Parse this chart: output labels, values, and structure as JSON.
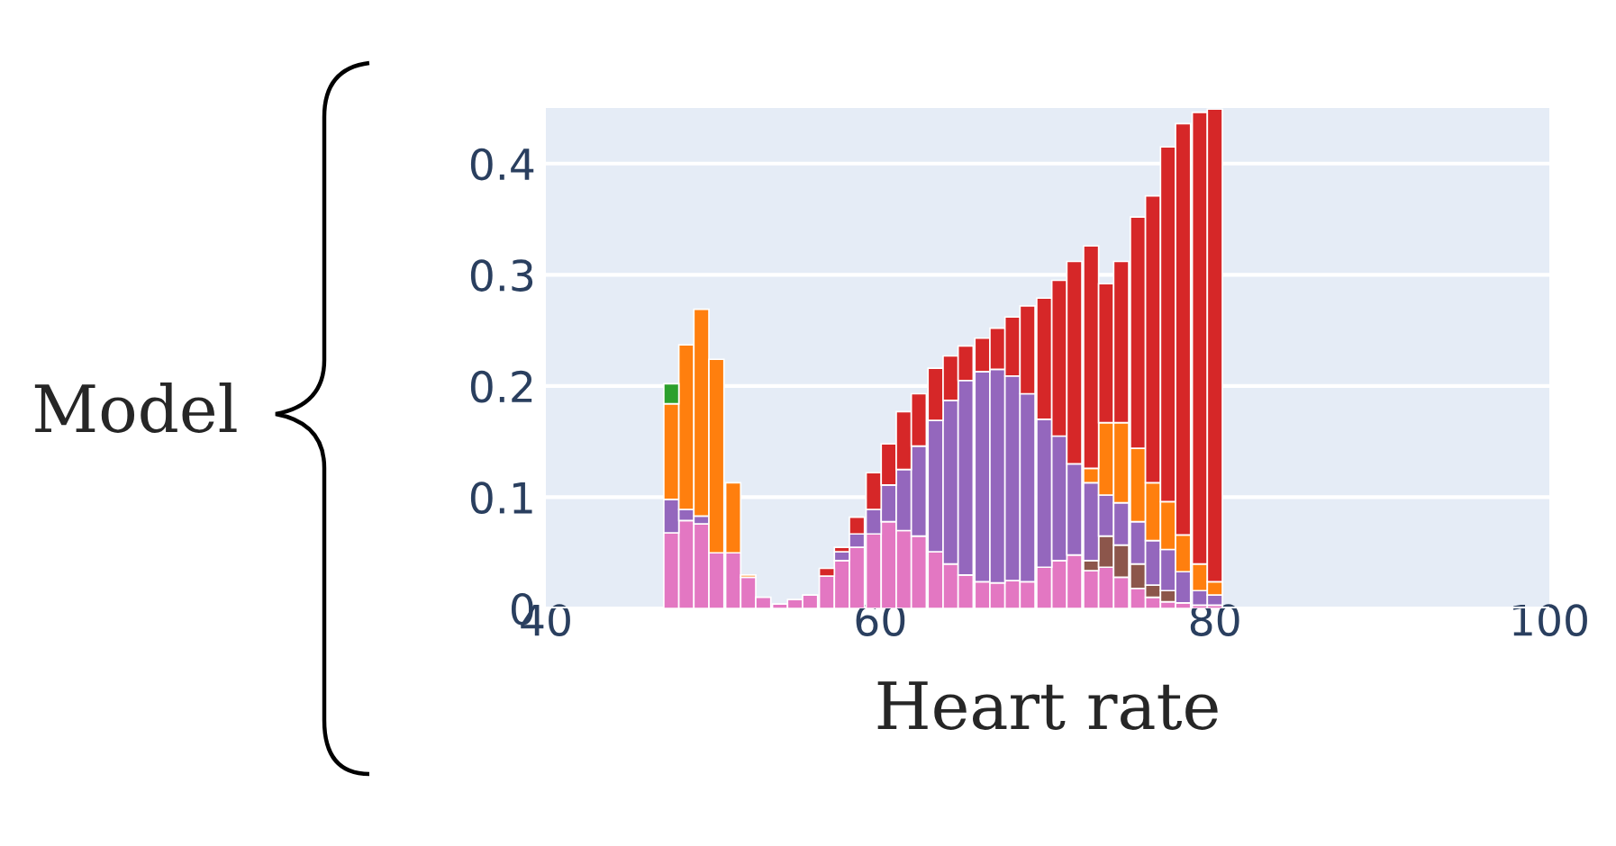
{
  "chart_data": {
    "type": "bar",
    "xlabel": "Heart rate",
    "annotations": [
      "Model"
    ],
    "stacked": true,
    "grid": "y",
    "xlim": [
      40,
      100
    ],
    "xticks": [
      40,
      60,
      80,
      100
    ],
    "ylim": [
      0,
      0.45
    ],
    "yticks": [
      0,
      0.1,
      0.2,
      0.3,
      0.4
    ],
    "x": [
      47.5,
      48.4,
      49.3,
      50.2,
      51.2,
      52.1,
      53.0,
      54.0,
      54.9,
      55.8,
      56.8,
      57.7,
      58.6,
      59.6,
      60.5,
      61.4,
      62.3,
      63.3,
      64.2,
      65.1,
      66.1,
      67.0,
      67.9,
      68.8,
      69.8,
      70.7,
      71.6,
      72.6,
      73.5,
      74.4,
      75.4,
      76.3,
      77.2,
      78.1,
      79.1,
      80.0
    ],
    "series": [
      {
        "color": "#e377c2",
        "values": [
          0.068,
          0.079,
          0.076,
          0.05,
          0.05,
          0.028,
          0.01,
          0.004,
          0.008,
          0.012,
          0.029,
          0.043,
          0.055,
          0.067,
          0.078,
          0.07,
          0.065,
          0.051,
          0.04,
          0.03,
          0.024,
          0.023,
          0.025,
          0.024,
          0.037,
          0.043,
          0.048,
          0.034,
          0.037,
          0.028,
          0.018,
          0.01,
          0.006,
          0.005,
          0.003,
          0.003
        ]
      },
      {
        "color": "#8c564b",
        "values": [
          null,
          null,
          null,
          null,
          null,
          null,
          null,
          null,
          null,
          null,
          null,
          null,
          null,
          null,
          null,
          null,
          null,
          null,
          null,
          null,
          null,
          null,
          null,
          null,
          null,
          null,
          null,
          0.009,
          0.028,
          0.029,
          0.022,
          0.011,
          0.01,
          null,
          null,
          null
        ]
      },
      {
        "color": "#9467bd",
        "values": [
          0.03,
          0.01,
          0.007,
          null,
          null,
          null,
          null,
          null,
          null,
          null,
          null,
          0.008,
          0.012,
          0.022,
          0.033,
          0.055,
          0.081,
          0.118,
          0.147,
          0.175,
          0.189,
          0.192,
          0.184,
          0.169,
          0.133,
          0.112,
          0.082,
          0.07,
          0.037,
          0.038,
          0.038,
          0.04,
          0.037,
          0.028,
          0.013,
          0.009
        ]
      },
      {
        "color": "#ff7f0e",
        "values": [
          0.086,
          0.148,
          0.186,
          0.174,
          0.063,
          0.002,
          null,
          null,
          null,
          null,
          null,
          null,
          null,
          null,
          null,
          null,
          null,
          null,
          null,
          null,
          null,
          null,
          null,
          null,
          null,
          null,
          null,
          0.013,
          0.065,
          0.072,
          0.066,
          0.052,
          0.043,
          0.033,
          0.024,
          0.012
        ]
      },
      {
        "color": "#d62728",
        "values": [
          null,
          null,
          null,
          null,
          null,
          null,
          null,
          null,
          null,
          null,
          0.007,
          0.004,
          0.015,
          0.033,
          0.037,
          0.052,
          0.047,
          0.047,
          0.04,
          0.031,
          0.03,
          0.037,
          0.053,
          0.079,
          0.109,
          0.14,
          0.182,
          0.2,
          0.125,
          0.145,
          0.208,
          0.258,
          0.319,
          0.37,
          0.406,
          0.425
        ]
      },
      {
        "color": "#2ca02c",
        "values": [
          0.018,
          null,
          null,
          null,
          null,
          null,
          null,
          null,
          null,
          null,
          null,
          null,
          null,
          null,
          null,
          null,
          null,
          null,
          null,
          null,
          null,
          null,
          null,
          null,
          null,
          null,
          null,
          null,
          null,
          null,
          null,
          null,
          null,
          null,
          null,
          null
        ]
      }
    ]
  }
}
